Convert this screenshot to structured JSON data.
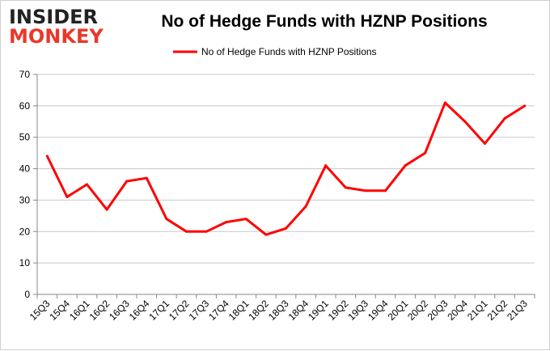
{
  "logo": {
    "line1": "INSIDER",
    "line2": "MONKEY"
  },
  "chart_data": {
    "type": "line",
    "title": "No of Hedge Funds with HZNP Positions",
    "xlabel": "",
    "ylabel": "",
    "ylim": [
      0,
      70
    ],
    "yticks": [
      0,
      10,
      20,
      30,
      40,
      50,
      60,
      70
    ],
    "grid": true,
    "legend": "top-center",
    "categories": [
      "15Q3",
      "15Q4",
      "16Q1",
      "16Q2",
      "16Q3",
      "16Q4",
      "17Q1",
      "17Q2",
      "17Q3",
      "17Q4",
      "18Q1",
      "18Q2",
      "18Q3",
      "18Q4",
      "19Q1",
      "19Q2",
      "19Q3",
      "19Q4",
      "20Q1",
      "20Q2",
      "20Q3",
      "20Q4",
      "21Q1",
      "21Q2",
      "21Q3"
    ],
    "series": [
      {
        "name": "No of Hedge Funds with HZNP Positions",
        "color": "#ff0000",
        "values": [
          44,
          31,
          35,
          27,
          36,
          37,
          24,
          20,
          20,
          23,
          24,
          19,
          21,
          28,
          41,
          34,
          33,
          33,
          41,
          45,
          61,
          55,
          48,
          56,
          60
        ]
      }
    ]
  }
}
